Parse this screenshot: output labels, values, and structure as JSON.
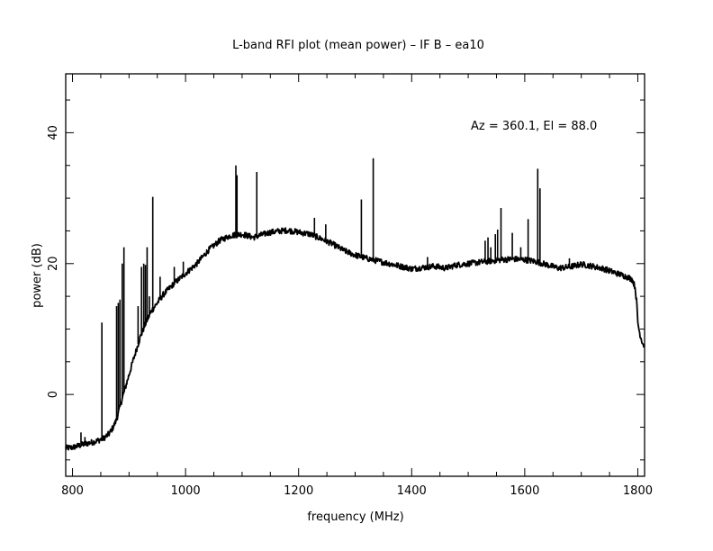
{
  "chart_data": {
    "type": "line",
    "title": "L-band RFI plot (mean power) – IF B – ea10",
    "xlabel": "frequency (MHz)",
    "ylabel": "power (dB)",
    "annotation": "Az = 360.1, El = 88.0",
    "xlim": [
      788,
      1812
    ],
    "ylim": [
      -12.5,
      49
    ],
    "x_ticks": [
      800,
      1000,
      1200,
      1400,
      1600,
      1800
    ],
    "x_tick_labels": [
      "800",
      "1000",
      "1200",
      "1400",
      "1600",
      "1800"
    ],
    "y_ticks": [
      0,
      20,
      40
    ],
    "y_tick_labels": [
      "0",
      "20",
      "40"
    ],
    "grid": false,
    "line_color": "#000000",
    "series": [
      {
        "name": "",
        "baseline": {
          "x": [
            788,
            800,
            820,
            840,
            855,
            865,
            872,
            878,
            882,
            886,
            890,
            895,
            900,
            910,
            920,
            930,
            940,
            950,
            960,
            980,
            1000,
            1020,
            1040,
            1060,
            1080,
            1100,
            1120,
            1150,
            1180,
            1200,
            1220,
            1240,
            1260,
            1280,
            1300,
            1320,
            1340,
            1360,
            1380,
            1400,
            1420,
            1440,
            1460,
            1480,
            1500,
            1520,
            1540,
            1560,
            1580,
            1600,
            1620,
            1640,
            1660,
            1680,
            1700,
            1720,
            1740,
            1760,
            1780,
            1790,
            1795,
            1798,
            1800,
            1803,
            1806,
            1809,
            1812
          ],
          "y": [
            -8.2,
            -8.1,
            -7.6,
            -7.2,
            -6.7,
            -6.0,
            -5.0,
            -3.8,
            -2.5,
            -1.2,
            0.0,
            1.5,
            3.0,
            6.0,
            8.8,
            11.0,
            12.8,
            14.0,
            15.2,
            17.0,
            18.5,
            20.0,
            22.0,
            23.5,
            24.3,
            24.5,
            24.0,
            24.8,
            25.1,
            24.8,
            24.5,
            23.8,
            23.0,
            22.0,
            21.3,
            20.8,
            20.4,
            20.0,
            19.6,
            19.2,
            19.4,
            19.6,
            19.3,
            19.8,
            20.0,
            20.2,
            20.4,
            20.6,
            20.7,
            20.6,
            20.3,
            19.8,
            19.3,
            19.5,
            19.9,
            19.6,
            19.2,
            18.6,
            18.0,
            17.6,
            16.5,
            14.0,
            11.0,
            9.5,
            8.5,
            7.8,
            7.3
          ]
        },
        "spikes": {
          "x": [
            815,
            822,
            852,
            878,
            881,
            884,
            888,
            891,
            916,
            922,
            926,
            929,
            932,
            936,
            942,
            955,
            980,
            996,
            1089,
            1091,
            1126,
            1228,
            1248,
            1311,
            1332,
            1428,
            1530,
            1535,
            1540,
            1548,
            1552,
            1558,
            1578,
            1593,
            1606,
            1623,
            1627,
            1679
          ],
          "y": [
            -5.8,
            -6.5,
            11.0,
            13.5,
            14.0,
            14.5,
            20.0,
            22.5,
            13.5,
            19.5,
            20.0,
            19.8,
            22.5,
            15.0,
            30.2,
            18.0,
            19.5,
            20.3,
            35.0,
            33.5,
            34.0,
            27.0,
            26.0,
            29.8,
            36.1,
            21.0,
            23.5,
            24.0,
            22.5,
            24.5,
            25.2,
            28.5,
            24.7,
            22.5,
            26.8,
            34.5,
            31.5,
            20.8
          ]
        }
      }
    ]
  }
}
